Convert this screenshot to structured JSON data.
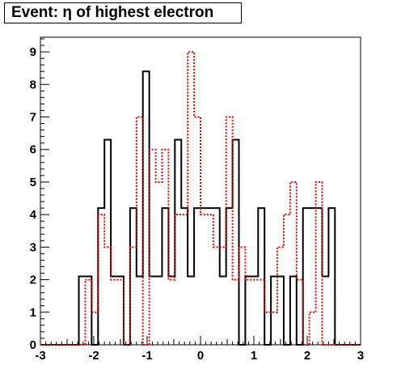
{
  "chart_data": {
    "type": "histogram",
    "title": "Event: η of highest electron",
    "xlabel": "",
    "ylabel": "",
    "xlim": [
      -3,
      3
    ],
    "ylim": [
      0,
      9.45
    ],
    "x_ticks": [
      "-3",
      "-2",
      "-1",
      "0",
      "1",
      "2",
      "3"
    ],
    "y_ticks": [
      "0",
      "1",
      "2",
      "3",
      "4",
      "5",
      "6",
      "7",
      "8",
      "9"
    ],
    "bin_width": 0.12,
    "bin_start": -3,
    "grid": false,
    "legend": "none",
    "series": [
      {
        "style": "solid",
        "color": "#000000",
        "values": [
          0,
          0,
          0,
          0,
          0,
          0,
          2.1,
          2.1,
          0,
          4.2,
          6.3,
          2.1,
          2.1,
          0,
          4.2,
          2.1,
          8.4,
          2.1,
          2.1,
          4.2,
          2.1,
          6.3,
          4.2,
          2.1,
          4.2,
          4.2,
          4.2,
          4.2,
          2.1,
          4.2,
          6.3,
          0,
          2.1,
          2.1,
          4.2,
          0,
          2.1,
          2.1,
          0,
          2.1,
          0,
          4.2,
          4.2,
          4.2,
          2.1,
          4.2,
          0,
          0,
          0,
          0
        ]
      },
      {
        "style": "dotted",
        "color": "#e00000",
        "values": [
          0,
          0,
          0,
          0,
          0,
          0,
          0,
          2,
          1,
          4,
          3,
          2,
          2,
          0,
          3,
          7,
          0,
          6,
          5,
          6,
          2,
          4,
          4,
          9,
          7,
          4,
          4,
          3,
          3,
          7,
          2,
          3,
          2,
          2,
          2,
          1,
          1,
          3,
          4,
          5,
          2,
          0,
          1,
          5,
          0,
          0,
          0,
          0,
          0,
          0
        ]
      }
    ]
  }
}
